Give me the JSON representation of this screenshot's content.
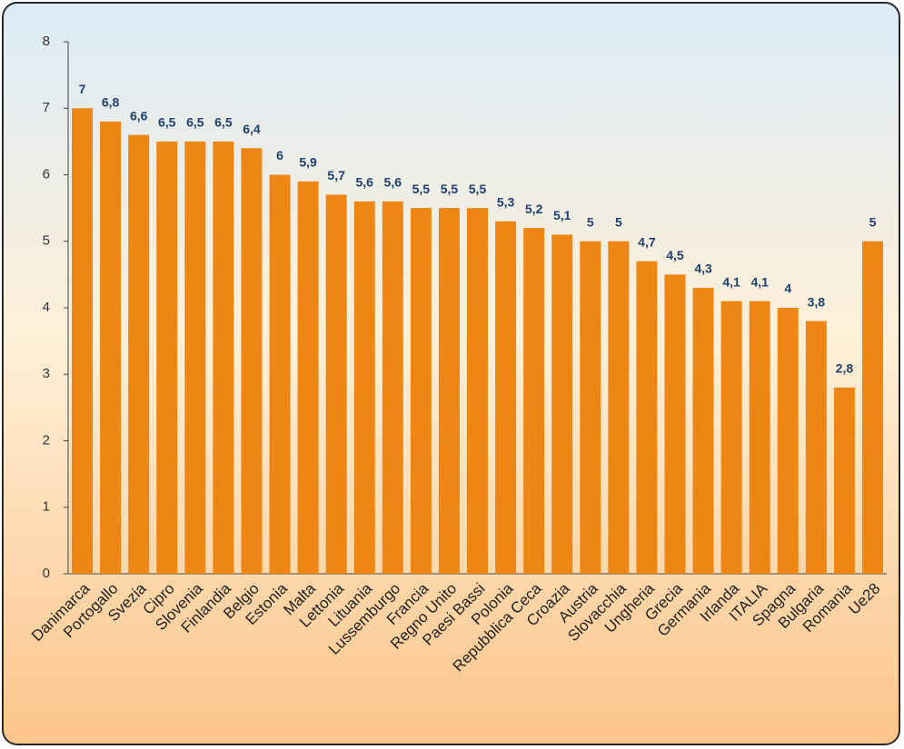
{
  "chart_data": {
    "type": "bar",
    "categories": [
      "Danimarca",
      "Portogallo",
      "Svezia",
      "Cipro",
      "Slovenia",
      "Finlandia",
      "Belgio",
      "Estonia",
      "Malta",
      "Lettonia",
      "Lituania",
      "Lussemburgo",
      "Francia",
      "Regno Unito",
      "Paesi Bassi",
      "Polonia",
      "Repubblica Ceca",
      "Croazia",
      "Austria",
      "Slovacchia",
      "Ungheria",
      "Grecia",
      "Germania",
      "Irlanda",
      "ITALIA",
      "Spagna",
      "Bulgaria",
      "Romania",
      "Ue28"
    ],
    "values": [
      7,
      6.8,
      6.6,
      6.5,
      6.5,
      6.5,
      6.4,
      6,
      5.9,
      5.7,
      5.6,
      5.6,
      5.5,
      5.5,
      5.5,
      5.3,
      5.2,
      5.1,
      5,
      5,
      4.7,
      4.5,
      4.3,
      4.1,
      4.1,
      4,
      3.8,
      2.8,
      5
    ],
    "value_labels": [
      "7",
      "6,8",
      "6,6",
      "6,5",
      "6,5",
      "6,5",
      "6,4",
      "6",
      "5,9",
      "5,7",
      "5,6",
      "5,6",
      "5,5",
      "5,5",
      "5,5",
      "5,3",
      "5,2",
      "5,1",
      "5",
      "5",
      "4,7",
      "4,5",
      "4,3",
      "4,1",
      "4,1",
      "4",
      "3,8",
      "2,8",
      "5"
    ],
    "color": "#ee8615",
    "ylim": [
      0,
      8
    ],
    "yticks": [
      0,
      1,
      2,
      3,
      4,
      5,
      6,
      7,
      8
    ],
    "grid": false
  }
}
